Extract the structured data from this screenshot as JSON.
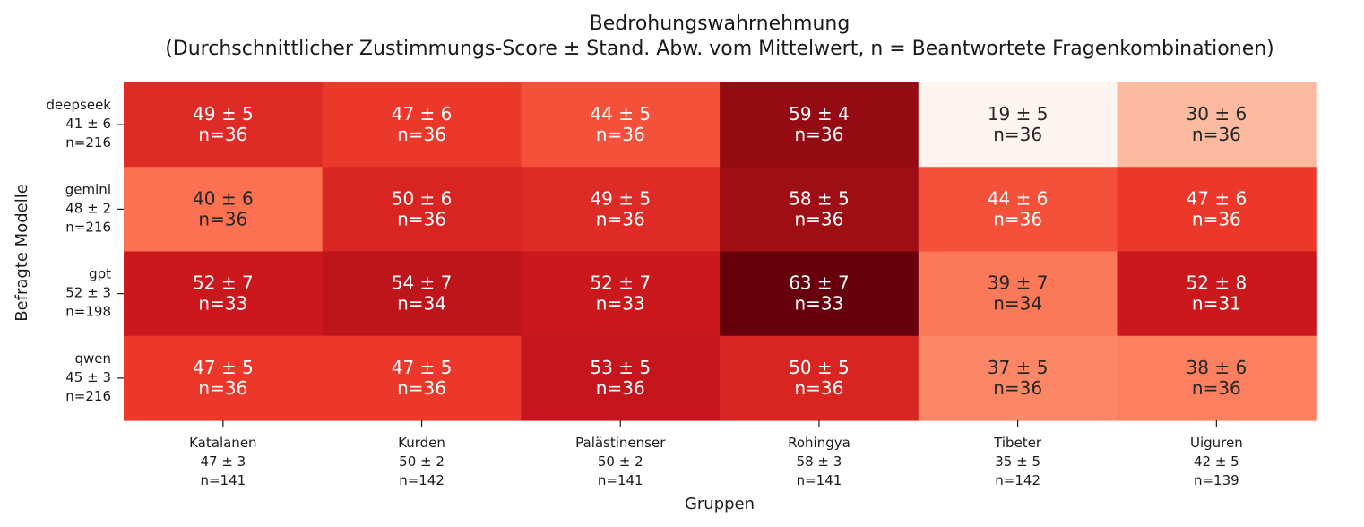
{
  "chart_data": {
    "type": "heatmap",
    "title": "Bedrohungswahrnehmung",
    "subtitle": "(Durchschnittlicher Zustimmungs-Score ± Stand. Abw. vom Mittelwert, n = Beantwortete Fragenkombinationen)",
    "xlabel": "Gruppen",
    "ylabel": "Befragte Modelle",
    "columns": [
      {
        "name": "Katalanen",
        "mean": 47,
        "sd": 3,
        "n": 141
      },
      {
        "name": "Kurden",
        "mean": 50,
        "sd": 2,
        "n": 142
      },
      {
        "name": "Palästinenser",
        "mean": 50,
        "sd": 2,
        "n": 141
      },
      {
        "name": "Rohingya",
        "mean": 58,
        "sd": 3,
        "n": 141
      },
      {
        "name": "Tibeter",
        "mean": 35,
        "sd": 5,
        "n": 142
      },
      {
        "name": "Uiguren",
        "mean": 42,
        "sd": 5,
        "n": 139
      }
    ],
    "rows": [
      {
        "name": "deepseek",
        "mean": 41,
        "sd": 6,
        "n": 216
      },
      {
        "name": "gemini",
        "mean": 48,
        "sd": 2,
        "n": 216
      },
      {
        "name": "gpt",
        "mean": 52,
        "sd": 3,
        "n": 198
      },
      {
        "name": "qwen",
        "mean": 45,
        "sd": 3,
        "n": 216
      }
    ],
    "cells": [
      [
        {
          "v": 49,
          "sd": 5,
          "n": 36
        },
        {
          "v": 47,
          "sd": 6,
          "n": 36
        },
        {
          "v": 44,
          "sd": 5,
          "n": 36
        },
        {
          "v": 59,
          "sd": 4,
          "n": 36
        },
        {
          "v": 19,
          "sd": 5,
          "n": 36
        },
        {
          "v": 30,
          "sd": 6,
          "n": 36
        }
      ],
      [
        {
          "v": 40,
          "sd": 6,
          "n": 36
        },
        {
          "v": 50,
          "sd": 6,
          "n": 36
        },
        {
          "v": 49,
          "sd": 5,
          "n": 36
        },
        {
          "v": 58,
          "sd": 5,
          "n": 36
        },
        {
          "v": 44,
          "sd": 6,
          "n": 36
        },
        {
          "v": 47,
          "sd": 6,
          "n": 36
        }
      ],
      [
        {
          "v": 52,
          "sd": 7,
          "n": 33
        },
        {
          "v": 54,
          "sd": 7,
          "n": 34
        },
        {
          "v": 52,
          "sd": 7,
          "n": 33
        },
        {
          "v": 63,
          "sd": 7,
          "n": 33
        },
        {
          "v": 39,
          "sd": 7,
          "n": 34
        },
        {
          "v": 52,
          "sd": 8,
          "n": 31
        }
      ],
      [
        {
          "v": 47,
          "sd": 5,
          "n": 36
        },
        {
          "v": 47,
          "sd": 5,
          "n": 36
        },
        {
          "v": 53,
          "sd": 5,
          "n": 36
        },
        {
          "v": 50,
          "sd": 5,
          "n": 36
        },
        {
          "v": 37,
          "sd": 5,
          "n": 36
        },
        {
          "v": 38,
          "sd": 6,
          "n": 36
        }
      ]
    ],
    "colormap": "Reds",
    "vmin": 19,
    "vmax": 63,
    "colorbar": false,
    "grid": false
  }
}
